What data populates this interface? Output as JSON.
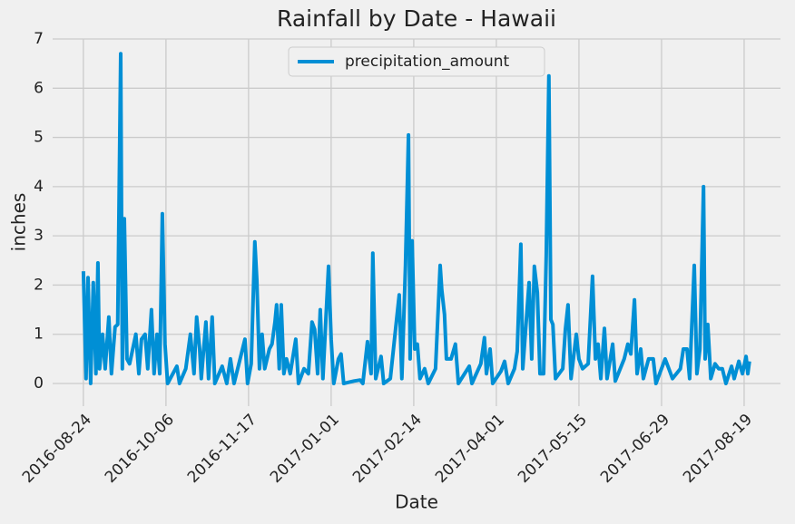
{
  "chart_data": {
    "type": "line",
    "title": "Rainfall by Date - Hawaii",
    "x_label": "Date",
    "y_label": "inches",
    "x": [
      0,
      8,
      14,
      22,
      30,
      38,
      44,
      49,
      58,
      66,
      77,
      85,
      96,
      104,
      113,
      118,
      124,
      132,
      140,
      159,
      168,
      176,
      187,
      195,
      206,
      214,
      223,
      231,
      239,
      247,
      255,
      283,
      291,
      310,
      324,
      335,
      343,
      352,
      357,
      371,
      379,
      390,
      398,
      420,
      434,
      445,
      456,
      489,
      497,
      508,
      519,
      525,
      533,
      541,
      549,
      563,
      571,
      580,
      585,
      593,
      599,
      607,
      615,
      626,
      643,
      651,
      668,
      681,
      692,
      700,
      709,
      717,
      725,
      742,
      750,
      758,
      772,
      780,
      788,
      819,
      838,
      846,
      860,
      871,
      876,
      885,
      901,
      909,
      929,
      948,
      956,
      964,
      975,
      984,
      989,
      995,
      1003,
      1011,
      1019,
      1033,
      1044,
      1066,
      1080,
      1085,
      1093,
      1099,
      1113,
      1126,
      1135,
      1168,
      1176,
      1203,
      1214,
      1220,
      1231,
      1239,
      1264,
      1275,
      1286,
      1305,
      1313,
      1324,
      1330,
      1341,
      1349,
      1357,
      1365,
      1374,
      1382,
      1393,
      1401,
      1409,
      1415,
      1421,
      1429,
      1451,
      1459,
      1467,
      1476,
      1492,
      1500,
      1511,
      1528,
      1541,
      1550,
      1558,
      1566,
      1577,
      1585,
      1602,
      1610,
      1637,
      1648,
      1657,
      1668,
      1676,
      1687,
      1695,
      1711,
      1725,
      1733,
      1761,
      1772,
      1783,
      1807,
      1816,
      1827,
      1835,
      1849,
      1857,
      1866,
      1877,
      1882,
      1890,
      1899,
      1912,
      1923,
      1934,
      1945,
      1962,
      1970,
      1984,
      1995,
      2006,
      2011,
      2016
    ],
    "series": [
      {
        "name": "precipitation_amount",
        "color": "#008fd5",
        "values": [
          2.28,
          0.1,
          2.15,
          0,
          2.05,
          0.2,
          2.45,
          0.3,
          1.0,
          0.3,
          1.35,
          0.2,
          1.15,
          1.2,
          6.7,
          0.3,
          3.35,
          0.5,
          0.4,
          1.0,
          0.2,
          0.9,
          1.0,
          0.3,
          1.5,
          0.2,
          1.0,
          0.2,
          3.45,
          0.8,
          0,
          0.35,
          0,
          0.3,
          1.0,
          0.2,
          1.35,
          0.7,
          0.1,
          1.25,
          0.1,
          1.35,
          0,
          0.35,
          0,
          0.5,
          0,
          0.9,
          0,
          0.4,
          2.88,
          2.1,
          0.3,
          1.0,
          0.3,
          0.7,
          0.8,
          1.25,
          1.6,
          0.3,
          1.6,
          0.2,
          0.5,
          0.2,
          0.9,
          0,
          0.3,
          0.2,
          1.25,
          1.1,
          0.2,
          1.5,
          0.1,
          2.38,
          0.9,
          0,
          0.5,
          0.6,
          0,
          0.05,
          0.07,
          0,
          0.85,
          0.2,
          2.65,
          0.1,
          0.55,
          0,
          0.1,
          1.3,
          1.8,
          0.1,
          2.4,
          5.05,
          0.5,
          2.9,
          0.7,
          0.8,
          0.1,
          0.3,
          0,
          0.3,
          2.4,
          1.9,
          1.4,
          0.5,
          0.5,
          0.8,
          0,
          0.35,
          0,
          0.4,
          0.93,
          0.2,
          0.7,
          0,
          0.25,
          0.45,
          0,
          0.3,
          0.65,
          2.83,
          0.3,
          1.3,
          2.05,
          0.5,
          2.38,
          1.85,
          0.2,
          0.2,
          2.6,
          6.25,
          1.3,
          1.2,
          0.1,
          0.3,
          1.1,
          1.6,
          0.1,
          1.0,
          0.5,
          0.3,
          0.4,
          2.18,
          0.5,
          0.8,
          0.1,
          1.12,
          0.1,
          0.8,
          0.05,
          0.5,
          0.8,
          0.6,
          1.7,
          0.2,
          0.7,
          0.1,
          0.5,
          0.5,
          0,
          0.5,
          0.3,
          0.1,
          0.3,
          0.7,
          0.7,
          0.1,
          2.4,
          0.2,
          0.7,
          4.0,
          0.5,
          1.2,
          0.1,
          0.4,
          0.3,
          0.3,
          0,
          0.35,
          0.1,
          0.45,
          0.2,
          0.55,
          0.2,
          0.45
        ]
      }
    ],
    "xlim": [
      -93,
      2110
    ],
    "xticks": [
      {
        "value": 0,
        "label": "2016-08-24"
      },
      {
        "value": 250,
        "label": "2016-10-06"
      },
      {
        "value": 500,
        "label": "2016-11-17"
      },
      {
        "value": 750,
        "label": "2017-01-01"
      },
      {
        "value": 1000,
        "label": "2017-02-14"
      },
      {
        "value": 1250,
        "label": "2017-04-01"
      },
      {
        "value": 1500,
        "label": "2017-05-15"
      },
      {
        "value": 1750,
        "label": "2017-06-29"
      },
      {
        "value": 2000,
        "label": "2017-08-19"
      }
    ],
    "ylim": [
      -0.46,
      7
    ],
    "yticks": [
      0,
      1,
      2,
      3,
      4,
      5,
      6,
      7
    ],
    "grid": true,
    "legend": "upper center"
  }
}
